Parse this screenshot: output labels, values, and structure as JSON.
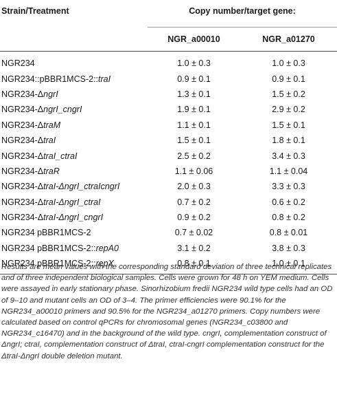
{
  "table": {
    "header": {
      "strain_label": "Strain/Treatment",
      "group_label": "Copy number/target gene:",
      "col1": "NGR_a00010",
      "col2": "NGR_a01270"
    },
    "rows": [
      {
        "prefix": "NGR234",
        "italic": "",
        "suffix": "",
        "v1": "1.0 ± 0.3",
        "v2": "1.0 ± 0.3"
      },
      {
        "prefix": "NGR234::pBBR1MCS-2::",
        "italic": "traI",
        "suffix": "",
        "v1": "0.9 ± 0.1",
        "v2": "0.9 ± 0.1"
      },
      {
        "prefix": "NGR234-Δ",
        "italic": "ngrI",
        "suffix": "",
        "v1": "1.3 ± 0.1",
        "v2": "1.5 ± 0.2"
      },
      {
        "prefix": "NGR234-Δ",
        "italic": "ngrI_cngrI",
        "suffix": "",
        "v1": "1.9 ± 0.1",
        "v2": "2.9 ± 0.2"
      },
      {
        "prefix": "NGR234-Δ",
        "italic": "traM",
        "suffix": "",
        "v1": "1.1 ± 0.1",
        "v2": "1.5 ± 0.1"
      },
      {
        "prefix": "NGR234-Δ",
        "italic": "traI",
        "suffix": "",
        "v1": "1.5 ± 0.1",
        "v2": "1.8 ± 0.1"
      },
      {
        "prefix": "NGR234-Δ",
        "italic": "traI_ctraI",
        "suffix": "",
        "v1": "2.5 ± 0.2",
        "v2": "3.4 ± 0.3"
      },
      {
        "prefix": "NGR234-Δ",
        "italic": "traR",
        "suffix": "",
        "v1": "1.1 ± 0.06",
        "v2": "1.1 ± 0.04"
      },
      {
        "prefix": "NGR234-Δ",
        "italic": "traI-ΔngrI_ctraIcngrI",
        "suffix": "",
        "v1": "2.0 ± 0.3",
        "v2": "3.3 ± 0.3"
      },
      {
        "prefix": "NGR234-Δ",
        "italic": "traI-ΔngrI_ctraI",
        "suffix": "",
        "v1": "0.7 ± 0.2",
        "v2": "0.6 ± 0.2"
      },
      {
        "prefix": "NGR234-Δ",
        "italic": "traI-ΔngrI_cngrI",
        "suffix": "",
        "v1": "0.9 ± 0.2",
        "v2": "0.8 ± 0.2"
      },
      {
        "prefix": "NGR234 pBBR1MCS-2",
        "italic": "",
        "suffix": "",
        "v1": "0.7 ± 0.02",
        "v2": "0.8 ± 0.01"
      },
      {
        "prefix": "NGR234 pBBR1MCS-2::",
        "italic": "repA0",
        "suffix": "",
        "v1": "3.1 ± 0.2",
        "v2": "3.8 ± 0.3"
      },
      {
        "prefix": "NGR234 pBBR1MCS-2::",
        "italic": "repX",
        "suffix": "",
        "v1": "0.8 ± 0.1",
        "v2": "1.0 ± 0.1"
      }
    ]
  },
  "footnote": "Results are mean values with the corresponding standard deviation of three technical replicates and of three independent biological samples. Cells were grown for 48 h on YEM medium. Cells were assayed in early stationary phase. Sinorhizobium fredii NGR234 wild type cells had an OD of 9–10 and mutant cells an OD of 3–4. The primer efficiencies were 90.1% for the NGR234_a00010 primers and 90.5% for the NGR234_a01270 primers. Copy numbers were calculated based on control qPCRs for chromosomal genes (NGR234_c03800 and NGR234_c16470) and in the background of the wild type. cngrI, complementation construct of ΔngrI; ctraI, complementation construct of ΔtraI, ctraI-cngrI complementation construct for the ΔtraI-ΔngrI double deletion mutant."
}
